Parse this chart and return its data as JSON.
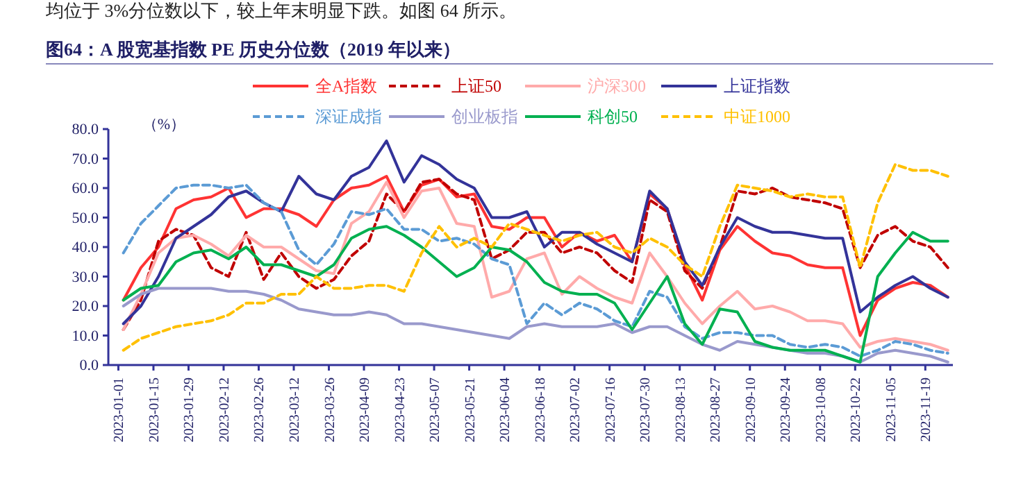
{
  "chart_data": {
    "type": "line",
    "title": "图64：A 股宽基指数 PE 历史分位数（2019 年以来）",
    "annotations": [
      "均位于 3%分位数以下，较上年末明显下跌。如图 64 所示。"
    ],
    "ylabel": "（%）",
    "x": [
      "2023-01-03",
      "2023-01-10",
      "2023-01-17",
      "2023-01-24",
      "2023-01-31",
      "2023-02-07",
      "2023-02-14",
      "2023-02-21",
      "2023-02-28",
      "2023-03-07",
      "2023-03-14",
      "2023-03-21",
      "2023-03-28",
      "2023-04-04",
      "2023-04-11",
      "2023-04-18",
      "2023-04-25",
      "2023-05-02",
      "2023-05-09",
      "2023-05-16",
      "2023-05-23",
      "2023-05-30",
      "2023-06-06",
      "2023-06-13",
      "2023-06-20",
      "2023-06-27",
      "2023-07-04",
      "2023-07-11",
      "2023-07-18",
      "2023-07-25",
      "2023-08-01",
      "2023-08-08",
      "2023-08-15",
      "2023-08-22",
      "2023-08-29",
      "2023-09-05",
      "2023-09-12",
      "2023-09-19",
      "2023-09-26",
      "2023-10-03",
      "2023-10-10",
      "2023-10-17",
      "2023-10-24",
      "2023-10-31",
      "2023-11-07",
      "2023-11-14",
      "2023-11-21",
      "2023-11-28"
    ],
    "series": [
      {
        "name": "全A指数",
        "color": "#ff3333",
        "line_style": "solid",
        "values": [
          22,
          33,
          40,
          53,
          56,
          57,
          60,
          50,
          53,
          53,
          51,
          47,
          56,
          60,
          61,
          64,
          52,
          61,
          63,
          57,
          58,
          47,
          46,
          50,
          50,
          40,
          45,
          42,
          44,
          35,
          58,
          53,
          34,
          22,
          39,
          47,
          42,
          38,
          37,
          34,
          33,
          33,
          10,
          22,
          26,
          28,
          27,
          23
        ]
      },
      {
        "name": "上证50",
        "color": "#c00000",
        "line_style": "dashed",
        "values": [
          12,
          22,
          42,
          46,
          44,
          33,
          30,
          45,
          29,
          38,
          30,
          26,
          29,
          37,
          42,
          58,
          52,
          62,
          63,
          58,
          56,
          36,
          39,
          45,
          45,
          38,
          40,
          38,
          32,
          28,
          56,
          52,
          32,
          26,
          40,
          59,
          58,
          60,
          57,
          56,
          55,
          53,
          33,
          44,
          47,
          42,
          40,
          33
        ]
      },
      {
        "name": "沪深300",
        "color": "#ffaaaa",
        "line_style": "solid",
        "values": [
          12,
          24,
          38,
          43,
          44,
          41,
          37,
          44,
          40,
          40,
          36,
          32,
          31,
          48,
          52,
          62,
          50,
          59,
          60,
          48,
          47,
          23,
          25,
          36,
          38,
          24,
          30,
          26,
          23,
          21,
          38,
          30,
          21,
          14,
          20,
          25,
          19,
          20,
          18,
          15,
          15,
          14,
          6,
          8,
          9,
          8,
          7,
          5
        ]
      },
      {
        "name": "上证指数",
        "color": "#333399",
        "line_style": "solid",
        "values": [
          14,
          20,
          30,
          43,
          47,
          51,
          57,
          59,
          55,
          52,
          64,
          58,
          56,
          64,
          67,
          76,
          62,
          71,
          68,
          63,
          60,
          50,
          50,
          52,
          40,
          45,
          45,
          41,
          38,
          35,
          59,
          53,
          35,
          27,
          40,
          50,
          47,
          45,
          45,
          44,
          43,
          43,
          18,
          23,
          27,
          30,
          26,
          23
        ]
      },
      {
        "name": "深证成指",
        "color": "#5b9bd5",
        "line_style": "dashed",
        "values": [
          38,
          48,
          54,
          60,
          61,
          61,
          60,
          61,
          55,
          52,
          39,
          34,
          41,
          52,
          51,
          53,
          46,
          46,
          42,
          43,
          41,
          36,
          34,
          14,
          21,
          17,
          21,
          19,
          15,
          13,
          25,
          23,
          13,
          9,
          11,
          11,
          10,
          10,
          7,
          6,
          7,
          6,
          3,
          5,
          8,
          7,
          5,
          4
        ]
      },
      {
        "name": "创业板指",
        "color": "#9999cc",
        "line_style": "solid",
        "values": [
          20,
          24,
          26,
          26,
          26,
          26,
          25,
          25,
          24,
          22,
          19,
          18,
          17,
          17,
          18,
          17,
          14,
          14,
          13,
          12,
          11,
          10,
          9,
          13,
          14,
          13,
          13,
          13,
          14,
          11,
          13,
          13,
          10,
          7,
          5,
          8,
          7,
          6,
          5,
          4,
          4,
          3,
          1,
          4,
          5,
          4,
          3,
          1
        ]
      },
      {
        "name": "科创50",
        "color": "#00b050",
        "line_style": "solid",
        "values": [
          22,
          26,
          27,
          35,
          38,
          39,
          36,
          40,
          34,
          34,
          32,
          30,
          34,
          43,
          46,
          47,
          44,
          40,
          35,
          30,
          33,
          40,
          39,
          35,
          28,
          25,
          24,
          24,
          21,
          12,
          21,
          30,
          14,
          7,
          19,
          18,
          8,
          6,
          5,
          5,
          5,
          3,
          1,
          30,
          38,
          45,
          42,
          42
        ]
      },
      {
        "name": "中证1000",
        "color": "#ffc000",
        "line_style": "dashed",
        "values": [
          5,
          9,
          11,
          13,
          14,
          15,
          17,
          21,
          21,
          24,
          24,
          30,
          26,
          26,
          27,
          27,
          25,
          38,
          47,
          40,
          43,
          40,
          48,
          46,
          44,
          42,
          44,
          45,
          40,
          38,
          43,
          40,
          34,
          30,
          47,
          61,
          60,
          59,
          57,
          58,
          57,
          57,
          33,
          55,
          68,
          66,
          66,
          64
        ]
      }
    ],
    "xlim": [
      "2022-12-28",
      "2023-11-30"
    ],
    "xticks": [
      "2023-01-01",
      "2023-01-15",
      "2023-01-29",
      "2023-02-12",
      "2023-02-26",
      "2023-03-12",
      "2023-03-26",
      "2023-04-09",
      "2023-04-23",
      "2023-05-07",
      "2023-05-21",
      "2023-06-04",
      "2023-06-18",
      "2023-07-02",
      "2023-07-16",
      "2023-07-30",
      "2023-08-13",
      "2023-08-27",
      "2023-09-10",
      "2023-09-24",
      "2023-10-08",
      "2023-10-22",
      "2023-11-05",
      "2023-11-19"
    ],
    "ylim": [
      0,
      80
    ],
    "yticks": [
      {
        "value": 0,
        "label": "0.0"
      },
      {
        "value": 10,
        "label": "10.0"
      },
      {
        "value": 20,
        "label": "20.0"
      },
      {
        "value": 30,
        "label": "30.0"
      },
      {
        "value": 40,
        "label": "40.0"
      },
      {
        "value": 50,
        "label": "50.0"
      },
      {
        "value": 60,
        "label": "60.0"
      },
      {
        "value": 70,
        "label": "70.0"
      },
      {
        "value": 80,
        "label": "80.0"
      }
    ],
    "grid": false,
    "legend": "top",
    "marker": "none"
  }
}
